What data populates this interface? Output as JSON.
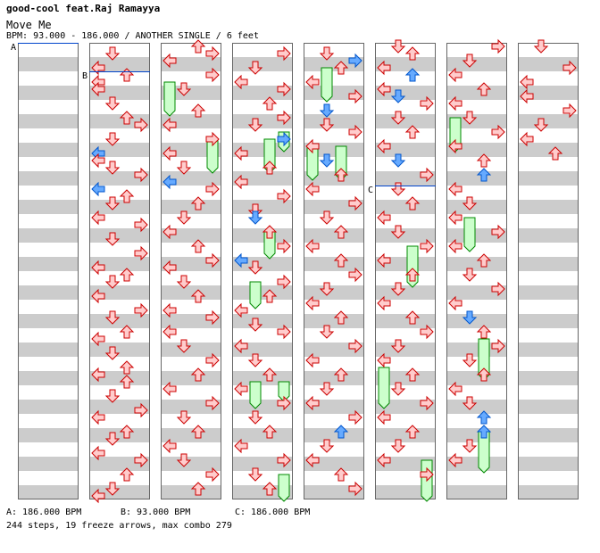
{
  "header": {
    "artist": "good-cool feat.Raj Ramayya",
    "title": "Move Me",
    "info": "BPM: 93.000 - 186.000 / ANOTHER SINGLE / 6 feet"
  },
  "bpm_markers": [
    {
      "id": "A",
      "legend": "A: 186.000 BPM"
    },
    {
      "id": "B",
      "legend": "B: 93.000 BPM"
    },
    {
      "id": "C",
      "legend": "C: 186.000 BPM"
    }
  ],
  "footer": {
    "stats": "244 steps, 19 freeze arrows, max combo 279"
  },
  "colors": {
    "stripe": "#cccccc",
    "red_arrow_fill": "#ffcccc",
    "red_arrow_stroke": "#cc0000",
    "blue_arrow_fill": "#66aaff",
    "blue_arrow_stroke": "#0055cc",
    "freeze_fill": "#ccffcc",
    "freeze_stroke": "#008800",
    "marker_line": "#0044cc"
  },
  "icons": {
    "left": "left-arrow-icon",
    "down": "down-arrow-icon",
    "up": "up-arrow-icon",
    "right": "right-arrow-icon"
  },
  "chart_data": {
    "type": "step-chart",
    "columns": 8,
    "lanes": [
      "left",
      "down",
      "up",
      "right"
    ],
    "notes": [
      [],
      [
        [
          1,
          1,
          1,
          0
        ],
        [
          3,
          1,
          0,
          0
        ],
        [
          4,
          1,
          2,
          0
        ],
        [
          5,
          1,
          0,
          0
        ],
        [
          6,
          1,
          0,
          1
        ],
        [
          8,
          1,
          1,
          0
        ],
        [
          10,
          1,
          2,
          0
        ],
        [
          11,
          1,
          3,
          0
        ],
        [
          13,
          1,
          1,
          0
        ],
        [
          15,
          0,
          0,
          0
        ],
        [
          16,
          1,
          0,
          0
        ],
        [
          17,
          1,
          1,
          0
        ],
        [
          18,
          1,
          3,
          0
        ],
        [
          20,
          0,
          0,
          0
        ],
        [
          21,
          1,
          2,
          0
        ],
        [
          22,
          1,
          1,
          0
        ],
        [
          24,
          1,
          0,
          0
        ],
        [
          25,
          1,
          3,
          0
        ],
        [
          27,
          1,
          1,
          0
        ],
        [
          29,
          1,
          3,
          0
        ],
        [
          31,
          1,
          0,
          0
        ],
        [
          32,
          1,
          2,
          0
        ],
        [
          33,
          1,
          1,
          0
        ],
        [
          35,
          1,
          0,
          0
        ],
        [
          37,
          1,
          3,
          0
        ],
        [
          38,
          1,
          1,
          0
        ],
        [
          40,
          1,
          2,
          0
        ],
        [
          41,
          1,
          0,
          0
        ],
        [
          43,
          1,
          1,
          0
        ],
        [
          45,
          1,
          2,
          0
        ],
        [
          46,
          1,
          0,
          0
        ],
        [
          47,
          1,
          2,
          0
        ],
        [
          49,
          1,
          1,
          0
        ],
        [
          51,
          1,
          3,
          0
        ],
        [
          52,
          1,
          0,
          0
        ],
        [
          54,
          1,
          2,
          0
        ],
        [
          55,
          1,
          1,
          0
        ],
        [
          57,
          1,
          0,
          0
        ],
        [
          58,
          1,
          3,
          0
        ],
        [
          60,
          1,
          2,
          0
        ],
        [
          62,
          1,
          1,
          0
        ],
        [
          63,
          1,
          0,
          0
        ]
      ],
      [
        [
          0,
          1,
          2,
          0
        ],
        [
          1,
          1,
          3,
          0
        ],
        [
          2,
          1,
          0,
          1
        ],
        [
          4,
          1,
          3,
          0
        ],
        [
          6,
          1,
          1,
          0
        ],
        [
          9,
          1,
          2,
          1
        ],
        [
          11,
          1,
          0,
          0
        ],
        [
          13,
          1,
          3,
          0
        ],
        [
          15,
          1,
          0,
          0
        ],
        [
          17,
          1,
          1,
          0
        ],
        [
          19,
          0,
          0,
          0
        ],
        [
          20,
          1,
          3,
          0
        ],
        [
          22,
          1,
          2,
          0
        ],
        [
          24,
          1,
          1,
          0
        ],
        [
          26,
          1,
          0,
          0
        ],
        [
          28,
          1,
          2,
          0
        ],
        [
          30,
          1,
          3,
          0
        ],
        [
          31,
          1,
          0,
          0
        ],
        [
          33,
          1,
          1,
          0
        ],
        [
          35,
          1,
          2,
          0
        ],
        [
          37,
          1,
          0,
          0
        ],
        [
          38,
          1,
          3,
          0
        ],
        [
          40,
          1,
          0,
          0
        ],
        [
          42,
          1,
          1,
          0
        ],
        [
          44,
          1,
          3,
          0
        ],
        [
          46,
          1,
          2,
          0
        ],
        [
          48,
          1,
          0,
          0
        ],
        [
          50,
          1,
          3,
          0
        ],
        [
          52,
          1,
          1,
          0
        ],
        [
          54,
          1,
          2,
          0
        ],
        [
          56,
          1,
          0,
          0
        ],
        [
          58,
          1,
          1,
          0
        ],
        [
          60,
          1,
          3,
          0
        ],
        [
          62,
          1,
          2,
          0
        ]
      ],
      [
        [
          1,
          1,
          3,
          0
        ],
        [
          3,
          1,
          1,
          0
        ],
        [
          5,
          1,
          0,
          0
        ],
        [
          6,
          1,
          3,
          0
        ],
        [
          8,
          1,
          2,
          0
        ],
        [
          10,
          1,
          3,
          1
        ],
        [
          11,
          1,
          1,
          0
        ],
        [
          13,
          0,
          3,
          0
        ],
        [
          15,
          1,
          0,
          0
        ],
        [
          17,
          1,
          2,
          0
        ],
        [
          19,
          1,
          0,
          0
        ],
        [
          21,
          1,
          3,
          0
        ],
        [
          23,
          1,
          1,
          1
        ],
        [
          24,
          0,
          1,
          0
        ],
        [
          26,
          1,
          2,
          0
        ],
        [
          28,
          1,
          3,
          0
        ],
        [
          30,
          0,
          0,
          0
        ],
        [
          31,
          1,
          1,
          1
        ],
        [
          33,
          1,
          3,
          0
        ],
        [
          35,
          1,
          2,
          0
        ],
        [
          37,
          1,
          0,
          0
        ],
        [
          39,
          1,
          1,
          1
        ],
        [
          40,
          1,
          3,
          0
        ],
        [
          42,
          1,
          0,
          0
        ],
        [
          44,
          1,
          1,
          0
        ],
        [
          46,
          1,
          2,
          0
        ],
        [
          48,
          1,
          0,
          0
        ],
        [
          50,
          1,
          3,
          0
        ],
        [
          52,
          1,
          1,
          1
        ],
        [
          54,
          1,
          2,
          0
        ],
        [
          56,
          1,
          0,
          0
        ],
        [
          58,
          1,
          3,
          0
        ],
        [
          60,
          1,
          1,
          0
        ],
        [
          62,
          1,
          2,
          0
        ]
      ],
      [
        [
          1,
          1,
          1,
          0
        ],
        [
          2,
          0,
          3,
          0
        ],
        [
          3,
          1,
          2,
          1
        ],
        [
          5,
          1,
          0,
          0
        ],
        [
          7,
          1,
          3,
          0
        ],
        [
          9,
          0,
          1,
          0
        ],
        [
          11,
          1,
          1,
          1
        ],
        [
          12,
          1,
          3,
          1
        ],
        [
          14,
          1,
          0,
          0
        ],
        [
          16,
          0,
          1,
          0
        ],
        [
          18,
          1,
          2,
          0
        ],
        [
          20,
          1,
          0,
          0
        ],
        [
          22,
          1,
          3,
          0
        ],
        [
          24,
          1,
          1,
          0
        ],
        [
          26,
          1,
          2,
          0
        ],
        [
          28,
          1,
          0,
          0
        ],
        [
          30,
          1,
          2,
          0
        ],
        [
          32,
          1,
          3,
          0
        ],
        [
          34,
          1,
          1,
          0
        ],
        [
          36,
          1,
          0,
          0
        ],
        [
          38,
          1,
          2,
          0
        ],
        [
          40,
          1,
          1,
          0
        ],
        [
          42,
          1,
          3,
          0
        ],
        [
          44,
          1,
          0,
          0
        ],
        [
          46,
          1,
          2,
          0
        ],
        [
          48,
          1,
          1,
          0
        ],
        [
          50,
          1,
          0,
          0
        ],
        [
          52,
          1,
          3,
          0
        ],
        [
          54,
          0,
          2,
          0
        ],
        [
          56,
          1,
          1,
          0
        ],
        [
          58,
          1,
          0,
          0
        ],
        [
          60,
          1,
          2,
          0
        ],
        [
          62,
          1,
          3,
          0
        ]
      ],
      [
        [
          0,
          1,
          1,
          0
        ],
        [
          1,
          1,
          2,
          0
        ],
        [
          3,
          1,
          0,
          0
        ],
        [
          4,
          0,
          2,
          0
        ],
        [
          6,
          1,
          0,
          0
        ],
        [
          7,
          0,
          1,
          0
        ],
        [
          8,
          1,
          3,
          0
        ],
        [
          10,
          1,
          1,
          0
        ],
        [
          12,
          1,
          2,
          0
        ],
        [
          14,
          1,
          0,
          0
        ],
        [
          16,
          0,
          1,
          0
        ],
        [
          18,
          1,
          3,
          0
        ],
        [
          20,
          1,
          1,
          0
        ],
        [
          22,
          1,
          2,
          0
        ],
        [
          24,
          1,
          0,
          0
        ],
        [
          26,
          1,
          1,
          1
        ],
        [
          28,
          1,
          3,
          0
        ],
        [
          30,
          1,
          0,
          0
        ],
        [
          32,
          1,
          2,
          0
        ],
        [
          34,
          1,
          1,
          0
        ],
        [
          36,
          1,
          0,
          0
        ],
        [
          38,
          1,
          2,
          0
        ],
        [
          40,
          1,
          3,
          1
        ],
        [
          42,
          1,
          1,
          0
        ],
        [
          44,
          1,
          0,
          0
        ],
        [
          46,
          1,
          2,
          0
        ],
        [
          48,
          1,
          1,
          0
        ],
        [
          50,
          1,
          3,
          0
        ],
        [
          52,
          1,
          0,
          0
        ],
        [
          54,
          1,
          2,
          0
        ],
        [
          56,
          1,
          1,
          0
        ],
        [
          58,
          1,
          0,
          0
        ],
        [
          60,
          1,
          3,
          1
        ]
      ],
      [
        [
          0,
          1,
          3,
          1
        ],
        [
          2,
          1,
          1,
          0
        ],
        [
          4,
          1,
          0,
          0
        ],
        [
          6,
          1,
          2,
          0
        ],
        [
          8,
          1,
          0,
          0
        ],
        [
          10,
          1,
          1,
          1
        ],
        [
          12,
          1,
          3,
          0
        ],
        [
          14,
          1,
          0,
          0
        ],
        [
          16,
          1,
          2,
          0
        ],
        [
          18,
          0,
          2,
          0
        ],
        [
          20,
          1,
          0,
          0
        ],
        [
          22,
          1,
          1,
          1
        ],
        [
          24,
          1,
          0,
          0
        ],
        [
          26,
          1,
          3,
          0
        ],
        [
          28,
          1,
          0,
          0
        ],
        [
          30,
          1,
          2,
          0
        ],
        [
          32,
          1,
          1,
          0
        ],
        [
          34,
          1,
          3,
          0
        ],
        [
          36,
          1,
          0,
          0
        ],
        [
          38,
          0,
          1,
          1
        ],
        [
          40,
          1,
          2,
          0
        ],
        [
          42,
          1,
          3,
          0
        ],
        [
          44,
          1,
          1,
          0
        ],
        [
          46,
          1,
          2,
          0
        ],
        [
          48,
          1,
          0,
          0
        ],
        [
          50,
          1,
          1,
          0
        ],
        [
          52,
          0,
          2,
          0
        ],
        [
          54,
          0,
          2,
          1
        ],
        [
          56,
          1,
          1,
          0
        ],
        [
          58,
          1,
          0,
          0
        ]
      ],
      [
        [
          0,
          1,
          1,
          0
        ],
        [
          3,
          1,
          3,
          0
        ],
        [
          5,
          1,
          0,
          0
        ],
        [
          7,
          1,
          0,
          0
        ],
        [
          9,
          1,
          3,
          0
        ],
        [
          11,
          1,
          1,
          0
        ],
        [
          13,
          1,
          0,
          0
        ],
        [
          15,
          1,
          2,
          0
        ]
      ]
    ],
    "freezes": [
      [
        2,
        0,
        5,
        4
      ],
      [
        2,
        3,
        13,
        4
      ],
      [
        3,
        2,
        13,
        4
      ],
      [
        3,
        3,
        12,
        2
      ],
      [
        3,
        2,
        26,
        3
      ],
      [
        3,
        1,
        33,
        3
      ],
      [
        3,
        1,
        47,
        3
      ],
      [
        3,
        3,
        47,
        2
      ],
      [
        3,
        3,
        60,
        3
      ],
      [
        4,
        1,
        3,
        4
      ],
      [
        4,
        0,
        14,
        4
      ],
      [
        4,
        2,
        14,
        4
      ],
      [
        5,
        2,
        28,
        5
      ],
      [
        5,
        0,
        45,
        5
      ],
      [
        5,
        3,
        58,
        5
      ],
      [
        6,
        0,
        10,
        4
      ],
      [
        6,
        1,
        24,
        4
      ],
      [
        6,
        2,
        41,
        5
      ],
      [
        6,
        2,
        54,
        5
      ]
    ],
    "bpm_lines": [
      [
        0,
        0
      ],
      [
        1,
        2
      ],
      [
        5,
        10
      ]
    ]
  }
}
